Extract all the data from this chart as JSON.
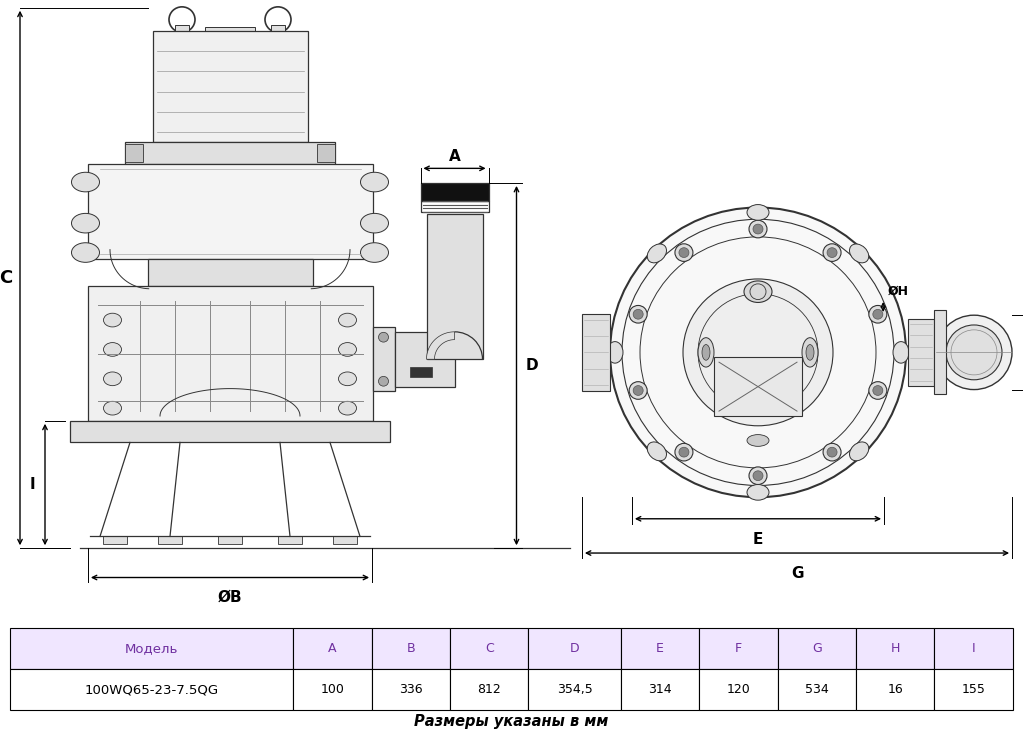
{
  "title": "",
  "table_headers": [
    "Модель",
    "A",
    "B",
    "C",
    "D",
    "E",
    "F",
    "G",
    "H",
    "I"
  ],
  "table_row": [
    "100WQ65-23-7.5QG",
    "100",
    "336",
    "812",
    "354,5",
    "314",
    "120",
    "534",
    "16",
    "155"
  ],
  "table_note": "Размеры указаны в мм",
  "header_color": "#f0e6ff",
  "row_color": "#ffffff",
  "border_color": "#000000",
  "text_color": "#000000",
  "header_text_color": "#7030a0",
  "bg_color": "#ffffff",
  "dim_color": "#000000",
  "drawing_line_color": "#333333",
  "drawing_fill_light": "#f0f0f0",
  "drawing_fill_mid": "#e0e0e0",
  "drawing_fill_dark": "#c8c8c8"
}
